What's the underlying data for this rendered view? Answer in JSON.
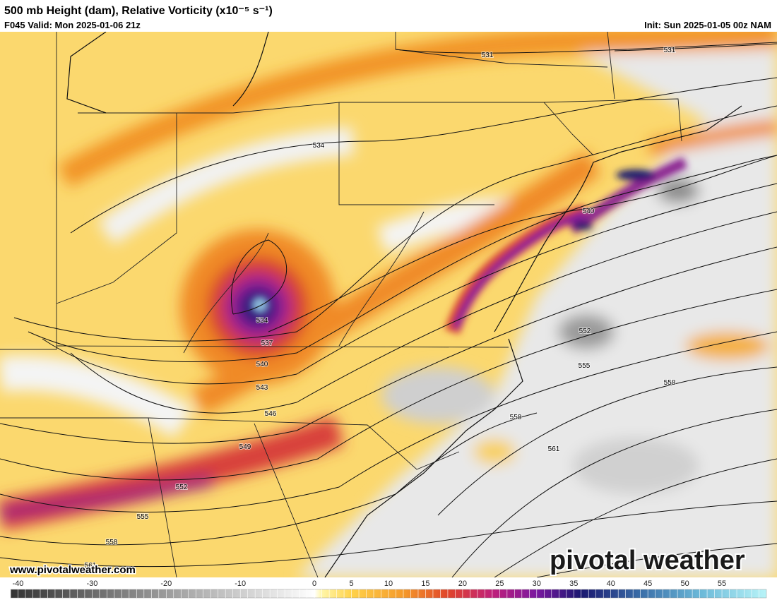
{
  "header": {
    "title": "500 mb Height (dam), Relative Vorticity (x10⁻⁵ s⁻¹)",
    "valid": "F045 Valid: Mon 2025-01-06 21z",
    "init": "Init: Sun 2025-01-05 00z NAM"
  },
  "map": {
    "contour_labels": [
      531,
      531,
      534,
      540,
      534,
      537,
      540,
      543,
      546,
      549,
      552,
      555,
      558,
      558,
      561,
      552,
      555,
      558,
      561
    ]
  },
  "footer": {
    "website": "www.pivotalweather.com",
    "logo": "pivotal weather"
  },
  "colorbar": {
    "range": [
      -41,
      61
    ],
    "ticks": [
      -40,
      -30,
      -20,
      -10,
      0,
      5,
      10,
      15,
      20,
      25,
      30,
      35,
      40,
      45,
      50,
      55
    ],
    "stops": [
      {
        "value": -41,
        "color": "#333333"
      },
      {
        "value": 0,
        "color": "#ffffff"
      },
      {
        "value": 1,
        "color": "#fff6a8"
      },
      {
        "value": 5,
        "color": "#ffd24a"
      },
      {
        "value": 12,
        "color": "#f59a2a"
      },
      {
        "value": 18,
        "color": "#e0452a"
      },
      {
        "value": 24,
        "color": "#c0207a"
      },
      {
        "value": 30,
        "color": "#7a18a0"
      },
      {
        "value": 36,
        "color": "#1a1870"
      },
      {
        "value": 44,
        "color": "#3a6ea8"
      },
      {
        "value": 52,
        "color": "#6ab8d8"
      },
      {
        "value": 61,
        "color": "#b8f4f8"
      }
    ]
  }
}
